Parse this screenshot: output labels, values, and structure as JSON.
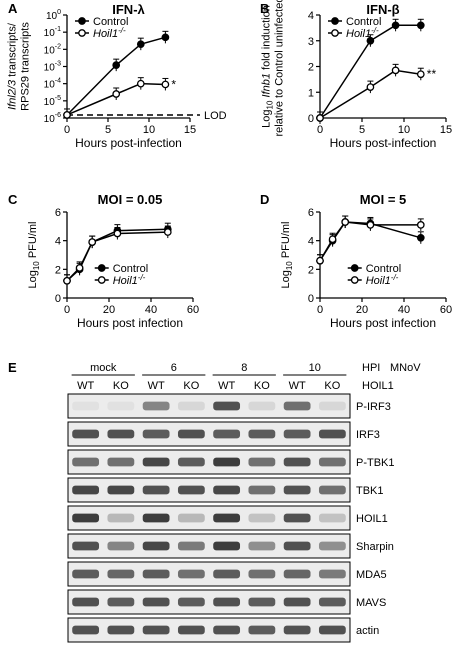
{
  "panels": [
    {
      "letter": "A"
    },
    {
      "letter": "B"
    },
    {
      "letter": "C"
    },
    {
      "letter": "D"
    },
    {
      "letter": "E"
    }
  ],
  "chart_data": [
    {
      "id": "A",
      "type": "line",
      "title": "IFN-λ",
      "xlabel": "Hours post-infection",
      "ylabel": "Ifnl2/3 transcripts/\nRPS29 transcripts",
      "yscale": "log",
      "xlim": [
        0,
        15
      ],
      "ylim": [
        1e-06,
        1
      ],
      "xticks": [
        "0",
        "5",
        "10",
        "15"
      ],
      "yticks": [
        "10^-6",
        "10^-5",
        "10^-4",
        "10^-3",
        "10^-2",
        "10^-1",
        "10^0"
      ],
      "legend": "top-left",
      "series": [
        {
          "name": "Control",
          "marker": "filled-circle",
          "x": [
            0,
            6,
            9,
            12
          ],
          "y": [
            1.5e-06,
            0.0012,
            0.02,
            0.05
          ]
        },
        {
          "name": "Hoil1-/-",
          "marker": "open-circle",
          "x": [
            0,
            6,
            9,
            12
          ],
          "y": [
            1.5e-06,
            2.5e-05,
            0.0001,
            9e-05
          ]
        }
      ],
      "annotations": [
        "*",
        "LOD"
      ],
      "lod": 1.5e-06
    },
    {
      "id": "B",
      "type": "line",
      "title": "IFN-β",
      "xlabel": "Hours post-infection",
      "ylabel": "Log10 Ifnb1 fold induction\nrelative to Control uninfected",
      "xlim": [
        0,
        15
      ],
      "ylim": [
        0,
        4
      ],
      "xticks": [
        "0",
        "5",
        "10",
        "15"
      ],
      "yticks": [
        "0",
        "1",
        "2",
        "3",
        "4"
      ],
      "legend": "top-left",
      "series": [
        {
          "name": "Control",
          "marker": "filled-circle",
          "x": [
            0,
            6,
            9,
            12
          ],
          "y": [
            0,
            3.0,
            3.6,
            3.6
          ]
        },
        {
          "name": "Hoil1-/-",
          "marker": "open-circle",
          "x": [
            0,
            6,
            9,
            12
          ],
          "y": [
            0,
            1.2,
            1.85,
            1.7
          ]
        }
      ],
      "annotations": [
        "**"
      ]
    },
    {
      "id": "C",
      "type": "line",
      "title": "MOI = 0.05",
      "xlabel": "Hours post infection",
      "ylabel": "Log10 PFU/ml",
      "xlim": [
        0,
        60
      ],
      "ylim": [
        0,
        6
      ],
      "xticks": [
        "0",
        "20",
        "40",
        "60"
      ],
      "yticks": [
        "0",
        "2",
        "4",
        "6"
      ],
      "legend": "bottom-right",
      "series": [
        {
          "name": "Control",
          "marker": "filled-circle",
          "x": [
            0,
            6,
            12,
            24,
            48
          ],
          "y": [
            1.2,
            2.0,
            3.9,
            4.7,
            4.8
          ]
        },
        {
          "name": "Hoil1-/-",
          "marker": "open-circle",
          "x": [
            0,
            6,
            12,
            24,
            48
          ],
          "y": [
            1.2,
            2.1,
            3.9,
            4.5,
            4.6
          ]
        }
      ]
    },
    {
      "id": "D",
      "type": "line",
      "title": "MOI = 5",
      "xlabel": "Hours post infection",
      "ylabel": "Log10 PFU/ml",
      "xlim": [
        0,
        60
      ],
      "ylim": [
        0,
        6
      ],
      "xticks": [
        "0",
        "20",
        "40",
        "60"
      ],
      "yticks": [
        "0",
        "2",
        "4",
        "6"
      ],
      "legend": "bottom-right",
      "series": [
        {
          "name": "Control",
          "marker": "filled-circle",
          "x": [
            0,
            6,
            12,
            24,
            48
          ],
          "y": [
            2.6,
            4.0,
            5.3,
            5.2,
            4.2
          ]
        },
        {
          "name": "Hoil1-/-",
          "marker": "open-circle",
          "x": [
            0,
            6,
            12,
            24,
            48
          ],
          "y": [
            2.6,
            4.1,
            5.3,
            5.1,
            5.1
          ]
        }
      ]
    }
  ],
  "blot": {
    "header_hpi": "HPI",
    "header_mnov": "MNoV",
    "header_hoil": "HOIL1",
    "groups": [
      "mock",
      "6",
      "8",
      "10"
    ],
    "lane_labels": [
      "WT",
      "KO",
      "WT",
      "KO",
      "WT",
      "KO",
      "WT",
      "KO"
    ],
    "bands": [
      {
        "label": "P-IRF3",
        "intensity": [
          0.05,
          0.05,
          0.5,
          0.1,
          0.75,
          0.1,
          0.6,
          0.1
        ]
      },
      {
        "label": "IRF3",
        "intensity": [
          0.75,
          0.75,
          0.7,
          0.75,
          0.7,
          0.7,
          0.7,
          0.75
        ]
      },
      {
        "label": "P-TBK1",
        "intensity": [
          0.6,
          0.6,
          0.8,
          0.7,
          0.85,
          0.6,
          0.75,
          0.6
        ]
      },
      {
        "label": "TBK1",
        "intensity": [
          0.8,
          0.8,
          0.75,
          0.75,
          0.8,
          0.6,
          0.75,
          0.6
        ]
      },
      {
        "label": "HOIL1",
        "intensity": [
          0.85,
          0.25,
          0.85,
          0.25,
          0.85,
          0.2,
          0.75,
          0.2
        ]
      },
      {
        "label": "Sharpin",
        "intensity": [
          0.75,
          0.5,
          0.8,
          0.55,
          0.85,
          0.45,
          0.75,
          0.45
        ]
      },
      {
        "label": "MDA5",
        "intensity": [
          0.7,
          0.65,
          0.7,
          0.6,
          0.7,
          0.6,
          0.65,
          0.55
        ]
      },
      {
        "label": "MAVS",
        "intensity": [
          0.75,
          0.7,
          0.75,
          0.7,
          0.75,
          0.7,
          0.75,
          0.7
        ]
      },
      {
        "label": "actin",
        "intensity": [
          0.75,
          0.75,
          0.75,
          0.75,
          0.75,
          0.7,
          0.75,
          0.75
        ]
      }
    ]
  }
}
